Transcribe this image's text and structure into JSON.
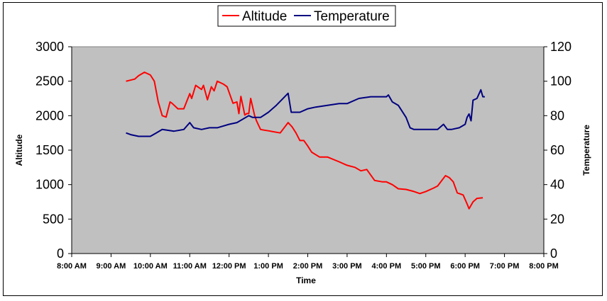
{
  "chart_data": {
    "type": "line",
    "title": "",
    "xlabel": "Time",
    "ylabel": "Altitude",
    "y2label": "Temperature",
    "x_ticks": [
      "8:00 AM",
      "9:00 AM",
      "10:00 AM",
      "11:00 AM",
      "12:00 PM",
      "1:00 PM",
      "2:00 PM",
      "3:00 PM",
      "4:00 PM",
      "5:00 PM",
      "6:00 PM",
      "7:00 PM",
      "8:00 PM"
    ],
    "xlim": [
      8,
      20
    ],
    "ylim": [
      0,
      3000
    ],
    "y_ticks": [
      0,
      500,
      1000,
      1500,
      2000,
      2500,
      3000
    ],
    "y2lim": [
      0,
      120
    ],
    "y2_ticks": [
      0,
      20,
      40,
      60,
      80,
      100,
      120
    ],
    "grid": false,
    "plot_background": "#c0c0c0",
    "legend_position": "top-center",
    "series": [
      {
        "name": "Altitude",
        "axis": "left",
        "color": "#ff0000",
        "x": [
          9.38,
          9.6,
          9.7,
          9.85,
          10.0,
          10.1,
          10.2,
          10.3,
          10.4,
          10.5,
          10.55,
          10.7,
          10.85,
          11.0,
          11.05,
          11.15,
          11.3,
          11.35,
          11.45,
          11.55,
          11.62,
          11.7,
          11.85,
          11.95,
          12.1,
          12.2,
          12.25,
          12.3,
          12.4,
          12.45,
          12.5,
          12.55,
          12.65,
          12.7,
          12.8,
          12.9,
          13.0,
          13.3,
          13.5,
          13.6,
          13.7,
          13.8,
          13.9,
          14.0,
          14.1,
          14.3,
          14.5,
          14.8,
          15.0,
          15.2,
          15.35,
          15.5,
          15.7,
          15.9,
          16.0,
          16.15,
          16.3,
          16.5,
          16.7,
          16.85,
          17.0,
          17.2,
          17.3,
          17.5,
          17.6,
          17.7,
          17.8,
          17.95,
          18.05,
          18.1,
          18.2,
          18.3,
          18.45
        ],
        "values": [
          2500,
          2530,
          2580,
          2630,
          2590,
          2500,
          2200,
          2000,
          1980,
          2200,
          2180,
          2100,
          2100,
          2320,
          2250,
          2440,
          2380,
          2440,
          2230,
          2420,
          2360,
          2500,
          2460,
          2420,
          2180,
          2200,
          2030,
          2280,
          2010,
          2030,
          2030,
          2250,
          2000,
          1920,
          1800,
          1790,
          1780,
          1750,
          1900,
          1840,
          1750,
          1640,
          1640,
          1560,
          1470,
          1400,
          1400,
          1330,
          1280,
          1250,
          1200,
          1220,
          1060,
          1040,
          1040,
          1000,
          940,
          930,
          900,
          870,
          900,
          950,
          980,
          1130,
          1100,
          1040,
          880,
          850,
          720,
          650,
          750,
          800,
          810
        ]
      },
      {
        "name": "Temperature",
        "axis": "right",
        "color": "#000080",
        "x": [
          9.38,
          9.5,
          9.7,
          10.0,
          10.15,
          10.3,
          10.6,
          10.85,
          11.0,
          11.1,
          11.3,
          11.5,
          11.7,
          12.0,
          12.2,
          12.5,
          12.6,
          12.8,
          13.0,
          13.2,
          13.5,
          13.58,
          13.65,
          13.8,
          14.0,
          14.2,
          14.5,
          14.8,
          15.0,
          15.3,
          15.6,
          15.8,
          16.0,
          16.05,
          16.15,
          16.3,
          16.5,
          16.6,
          16.7,
          16.85,
          17.0,
          17.3,
          17.45,
          17.55,
          17.65,
          17.85,
          18.0,
          18.05,
          18.1,
          18.15,
          18.2,
          18.3,
          18.4,
          18.45,
          18.5
        ],
        "values": [
          70,
          69,
          68,
          68,
          70,
          72,
          71,
          72,
          76,
          73,
          72,
          73,
          73,
          75,
          76,
          80,
          79,
          79,
          82,
          86,
          93,
          82,
          82,
          82,
          84,
          85,
          86,
          87,
          87,
          90,
          91,
          91,
          91,
          92,
          88,
          86,
          79,
          73,
          72,
          72,
          72,
          72,
          75,
          72,
          72,
          73,
          75,
          79,
          81,
          77,
          89,
          90,
          95,
          91,
          91
        ]
      }
    ]
  }
}
